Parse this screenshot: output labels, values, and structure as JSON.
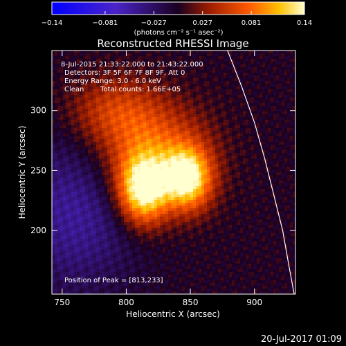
{
  "colorbar": {
    "min_label": "−0.14",
    "tick_labels": [
      "−0.14",
      "−0.081",
      "−0.027",
      "0.027",
      "0.081",
      "0.14"
    ],
    "tick_values": [
      -0.14,
      -0.081,
      -0.027,
      0.027,
      0.081,
      0.14
    ],
    "range": [
      -0.14,
      0.14
    ],
    "unit_label": "(photons cm⁻² s⁻¹ asec⁻²)"
  },
  "chart_data": {
    "type": "heatmap",
    "title": "Reconstructed RHESSI Image",
    "xlabel": "Heliocentric X (arcsec)",
    "ylabel": "Heliocentric Y (arcsec)",
    "xlim": [
      742,
      932
    ],
    "ylim": [
      147,
      350
    ],
    "x_ticks": [
      750,
      800,
      850,
      900
    ],
    "y_ticks": [
      200,
      250,
      300
    ],
    "sources": [
      {
        "x": 813,
        "y": 233,
        "peak": 0.14,
        "sigma_x": 14,
        "sigma_y": 20
      },
      {
        "x": 848,
        "y": 243,
        "peak": 0.13,
        "sigma_x": 13,
        "sigma_y": 18
      },
      {
        "x": 820,
        "y": 265,
        "peak": 0.075,
        "sigma_x": 30,
        "sigma_y": 28
      },
      {
        "x": 790,
        "y": 300,
        "peak": 0.05,
        "sigma_x": 25,
        "sigma_y": 20
      }
    ],
    "negative_region": {
      "x": 760,
      "y": 215,
      "value": -0.05
    },
    "limb_curve": [
      [
        879,
        350
      ],
      [
        890,
        320
      ],
      [
        900,
        290
      ],
      [
        908,
        260
      ],
      [
        915,
        230
      ],
      [
        922,
        200
      ],
      [
        927,
        170
      ],
      [
        931,
        147
      ]
    ],
    "annotations": {
      "time_range": "8-Jul-2015 21:33:22.000 to 21:43:22.000",
      "detectors": "Detectors: 3F 5F 6F 7F 8F 9F, Att 0",
      "energy": "Energy Range: 3.0 - 6.0 keV",
      "method": "Clean",
      "counts": "Total counts: 1.66E+05",
      "peak": "Position of Peak = [813,233]"
    }
  },
  "footer": {
    "timestamp": "20-Jul-2017 01:09"
  }
}
